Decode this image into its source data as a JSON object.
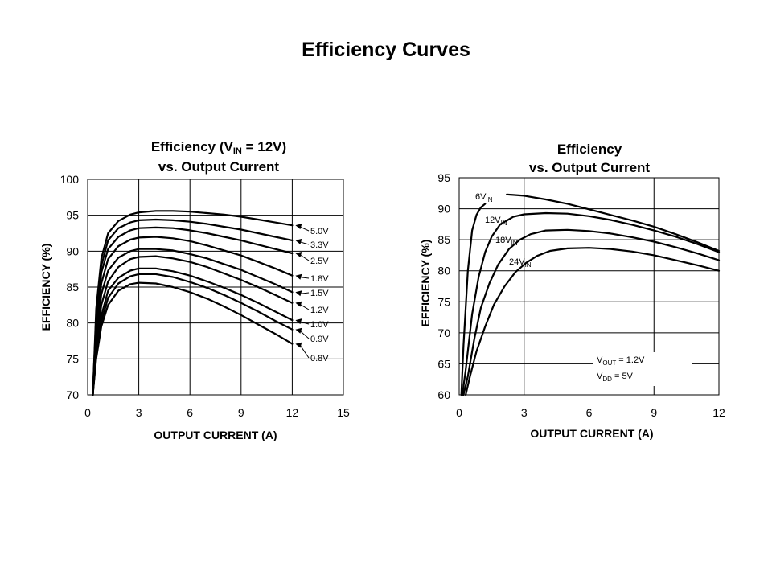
{
  "slide": {
    "title": "Efficiency Curves"
  },
  "chart_data": [
    {
      "type": "line",
      "title_main": "Efficiency (V",
      "title_sub": "IN",
      "title_tail": " = 12V)",
      "subtitle": "vs. Output Current",
      "xlabel": "OUTPUT CURRENT (A)",
      "ylabel": "EFFICIENCY (%)",
      "xlim": [
        0,
        15
      ],
      "ylim": [
        70,
        100
      ],
      "xticks": [
        0,
        3,
        6,
        9,
        12,
        15
      ],
      "yticks": [
        70,
        75,
        80,
        85,
        90,
        95,
        100
      ],
      "grid": true,
      "series": [
        {
          "name": "5.0V",
          "x": [
            0.3,
            0.5,
            0.8,
            1.2,
            1.8,
            2.5,
            3,
            4,
            5,
            6,
            7,
            8,
            9,
            10,
            11,
            12
          ],
          "y": [
            70,
            82,
            89,
            92.5,
            94.2,
            95.1,
            95.4,
            95.6,
            95.6,
            95.5,
            95.3,
            95.1,
            94.8,
            94.4,
            94,
            93.6
          ]
        },
        {
          "name": "3.3V",
          "x": [
            0.3,
            0.5,
            0.8,
            1.2,
            1.8,
            2.5,
            3,
            4,
            5,
            6,
            7,
            8,
            9,
            10,
            11,
            12
          ],
          "y": [
            70,
            81,
            88,
            91.5,
            93.2,
            94,
            94.3,
            94.4,
            94.3,
            94.1,
            93.8,
            93.4,
            93,
            92.5,
            92,
            91.5
          ]
        },
        {
          "name": "2.5V",
          "x": [
            0.3,
            0.5,
            0.8,
            1.2,
            1.8,
            2.5,
            3,
            4,
            5,
            6,
            7,
            8,
            9,
            10,
            11,
            12
          ],
          "y": [
            70,
            80,
            87,
            90.3,
            92,
            92.9,
            93.2,
            93.3,
            93.2,
            92.9,
            92.5,
            92,
            91.5,
            90.9,
            90.3,
            89.7
          ]
        },
        {
          "name": "1.8V",
          "x": [
            0.3,
            0.5,
            0.8,
            1.2,
            1.8,
            2.5,
            3,
            4,
            5,
            6,
            7,
            8,
            9,
            10,
            11,
            12
          ],
          "y": [
            70,
            79,
            85.5,
            88.9,
            90.7,
            91.6,
            91.9,
            92,
            91.8,
            91.4,
            90.8,
            90.1,
            89.4,
            88.5,
            87.6,
            86.6
          ]
        },
        {
          "name": "1.5V",
          "x": [
            0.3,
            0.5,
            0.8,
            1.2,
            1.8,
            2.5,
            3,
            4,
            5,
            6,
            7,
            8,
            9,
            10,
            11,
            12
          ],
          "y": [
            70,
            78,
            84,
            87.3,
            89.1,
            90,
            90.3,
            90.3,
            90.1,
            89.6,
            89,
            88.2,
            87.4,
            86.4,
            85.4,
            84.3
          ]
        },
        {
          "name": "1.2V",
          "x": [
            0.3,
            0.5,
            0.8,
            1.2,
            1.8,
            2.5,
            3,
            4,
            5,
            6,
            7,
            8,
            9,
            10,
            11,
            12
          ],
          "y": [
            70,
            77,
            82.5,
            85.8,
            87.8,
            88.9,
            89.2,
            89.3,
            89,
            88.5,
            87.8,
            86.9,
            86,
            85,
            83.9,
            82.8
          ]
        },
        {
          "name": "1.0V",
          "x": [
            0.3,
            0.5,
            0.8,
            1.2,
            1.8,
            2.5,
            3,
            4,
            5,
            6,
            7,
            8,
            9,
            10,
            11,
            12
          ],
          "y": [
            70,
            76,
            81,
            84.5,
            86.3,
            87.3,
            87.6,
            87.6,
            87.2,
            86.6,
            85.8,
            84.9,
            83.9,
            82.8,
            81.6,
            80.4
          ]
        },
        {
          "name": "0.9V",
          "x": [
            0.3,
            0.5,
            0.8,
            1.2,
            1.8,
            2.5,
            3,
            4,
            5,
            6,
            7,
            8,
            9,
            10,
            11,
            12
          ],
          "y": [
            70,
            75.5,
            80.2,
            83.5,
            85.5,
            86.5,
            86.8,
            86.8,
            86.4,
            85.7,
            84.9,
            83.9,
            82.8,
            81.6,
            80.3,
            79.1
          ]
        },
        {
          "name": "0.8V",
          "x": [
            0.3,
            0.5,
            0.8,
            1.2,
            1.8,
            2.5,
            3,
            4,
            5,
            6,
            7,
            8,
            9,
            10,
            11,
            12
          ],
          "y": [
            70,
            75,
            79.5,
            82.5,
            84.5,
            85.4,
            85.6,
            85.5,
            85,
            84.3,
            83.4,
            82.3,
            81.1,
            79.8,
            78.5,
            77.1
          ]
        }
      ]
    },
    {
      "type": "line",
      "title": "Efficiency",
      "subtitle": "vs. Output Current",
      "xlabel": "OUTPUT CURRENT (A)",
      "ylabel": "EFFICIENCY (%)",
      "xlim": [
        0,
        12
      ],
      "ylim": [
        60,
        95
      ],
      "xticks": [
        0,
        3,
        6,
        9,
        12
      ],
      "yticks": [
        60,
        65,
        70,
        75,
        80,
        85,
        90,
        95
      ],
      "grid": true,
      "series": [
        {
          "name_main": "6V",
          "name_sub": "IN",
          "x": [
            0.1,
            0.2,
            0.4,
            0.6,
            0.8,
            1.0,
            1.2
          ],
          "y": [
            60,
            68,
            80,
            86.5,
            89,
            90.2,
            90.8
          ]
        },
        {
          "name_main": "6V",
          "name_sub": "IN",
          "x": [
            2.2,
            3,
            4,
            5,
            6,
            7,
            8,
            9,
            10,
            11,
            12
          ],
          "y": [
            92.3,
            92.1,
            91.5,
            90.8,
            89.9,
            89,
            88.1,
            87.1,
            85.9,
            84.6,
            83.2
          ]
        },
        {
          "name_main": "12V",
          "name_sub": "IN",
          "x": [
            0.15,
            0.3,
            0.6,
            0.9,
            1.2,
            1.5,
            1.9,
            2.5,
            3,
            4,
            5,
            6,
            7,
            8,
            9,
            10,
            11,
            12
          ],
          "y": [
            60,
            64,
            73,
            79,
            83,
            85.5,
            87.5,
            88.7,
            89.1,
            89.3,
            89.2,
            88.8,
            88.2,
            87.4,
            86.5,
            85.5,
            84.3,
            83
          ]
        },
        {
          "name_main": "18V",
          "name_sub": "IN",
          "x": [
            0.2,
            0.4,
            0.7,
            1.0,
            1.4,
            1.8,
            2.3,
            2.8,
            3.3,
            4,
            5,
            6,
            7,
            8,
            9,
            10,
            11,
            12
          ],
          "y": [
            60,
            63,
            69,
            74,
            78,
            81,
            83.5,
            85,
            85.9,
            86.5,
            86.6,
            86.4,
            86,
            85.4,
            84.7,
            83.8,
            82.8,
            81.7
          ]
        },
        {
          "name_main": "24V",
          "name_sub": "IN",
          "x": [
            0.3,
            0.5,
            0.8,
            1.2,
            1.6,
            2.1,
            2.6,
            3.1,
            3.6,
            4.2,
            5,
            6,
            7,
            8,
            9,
            10,
            11,
            12
          ],
          "y": [
            60,
            63,
            67,
            71,
            74.5,
            77.5,
            79.8,
            81.3,
            82.4,
            83.2,
            83.6,
            83.7,
            83.5,
            83.1,
            82.5,
            81.7,
            80.9,
            80
          ]
        }
      ],
      "annotations": {
        "vout_main": "V",
        "vout_sub": "OUT",
        "vout_tail": " = 1.2V",
        "vdd_main": "V",
        "vdd_sub": "DD",
        "vdd_tail": " = 5V"
      }
    }
  ]
}
